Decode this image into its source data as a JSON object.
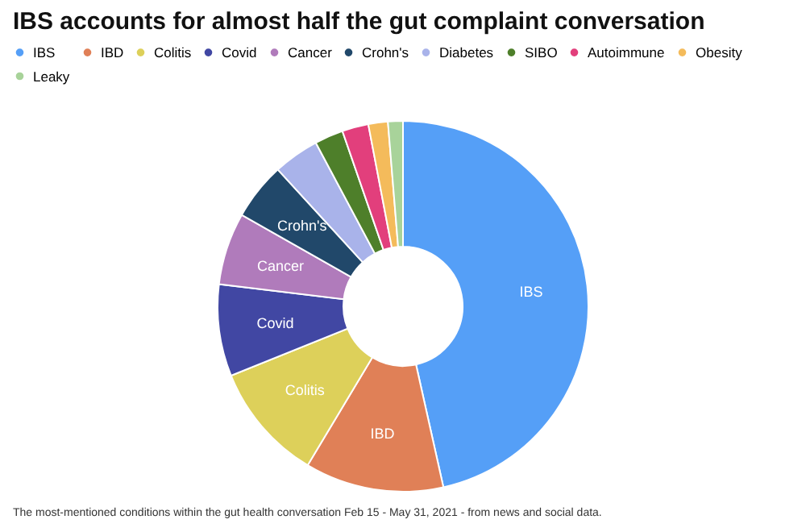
{
  "chart_data": {
    "type": "donut",
    "title": "IBS accounts for almost half the gut complaint conversation",
    "categories": [
      "IBS",
      "IBD",
      "Colitis",
      "Covid",
      "Cancer",
      "Crohn's",
      "Diabetes",
      "SIBO",
      "Autoimmune",
      "Obesity",
      "Leaky"
    ],
    "values": [
      46.5,
      12.1,
      10.3,
      8,
      6.3,
      5,
      4,
      2.5,
      2.3,
      1.7,
      1.3
    ],
    "colors": [
      "#559ff7",
      "#e08057",
      "#ddd05a",
      "#4147a3",
      "#b07bbb",
      "#21486a",
      "#a9b3ea",
      "#4e7f2a",
      "#e23f7c",
      "#f4bb5b",
      "#a8d39a"
    ],
    "legend": "top",
    "annotations": [
      "The most-mentioned conditions within the gut health conversation Feb 15 - May 31, 2021 - from news and social data."
    ]
  }
}
